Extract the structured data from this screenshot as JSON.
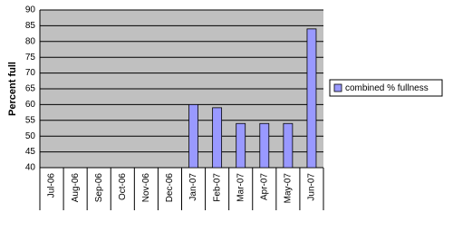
{
  "chart_data": {
    "type": "bar",
    "y_label": "Percent full",
    "categories": [
      "Jul-06",
      "Aug-06",
      "Sep-06",
      "Oct-06",
      "Nov-06",
      "Dec-06",
      "Jan-07",
      "Feb-07",
      "Mar-07",
      "Apr-07",
      "May-07",
      "Jun-07"
    ],
    "series": [
      {
        "name": "combined % fullness",
        "color": "#9999ff",
        "values": [
          null,
          null,
          null,
          null,
          null,
          null,
          60,
          59,
          54,
          54,
          54,
          84
        ]
      }
    ],
    "ylim": [
      40,
      90
    ],
    "yticks": [
      40,
      45,
      50,
      55,
      60,
      65,
      70,
      75,
      80,
      85,
      90
    ],
    "grid": true,
    "legend": "right"
  }
}
